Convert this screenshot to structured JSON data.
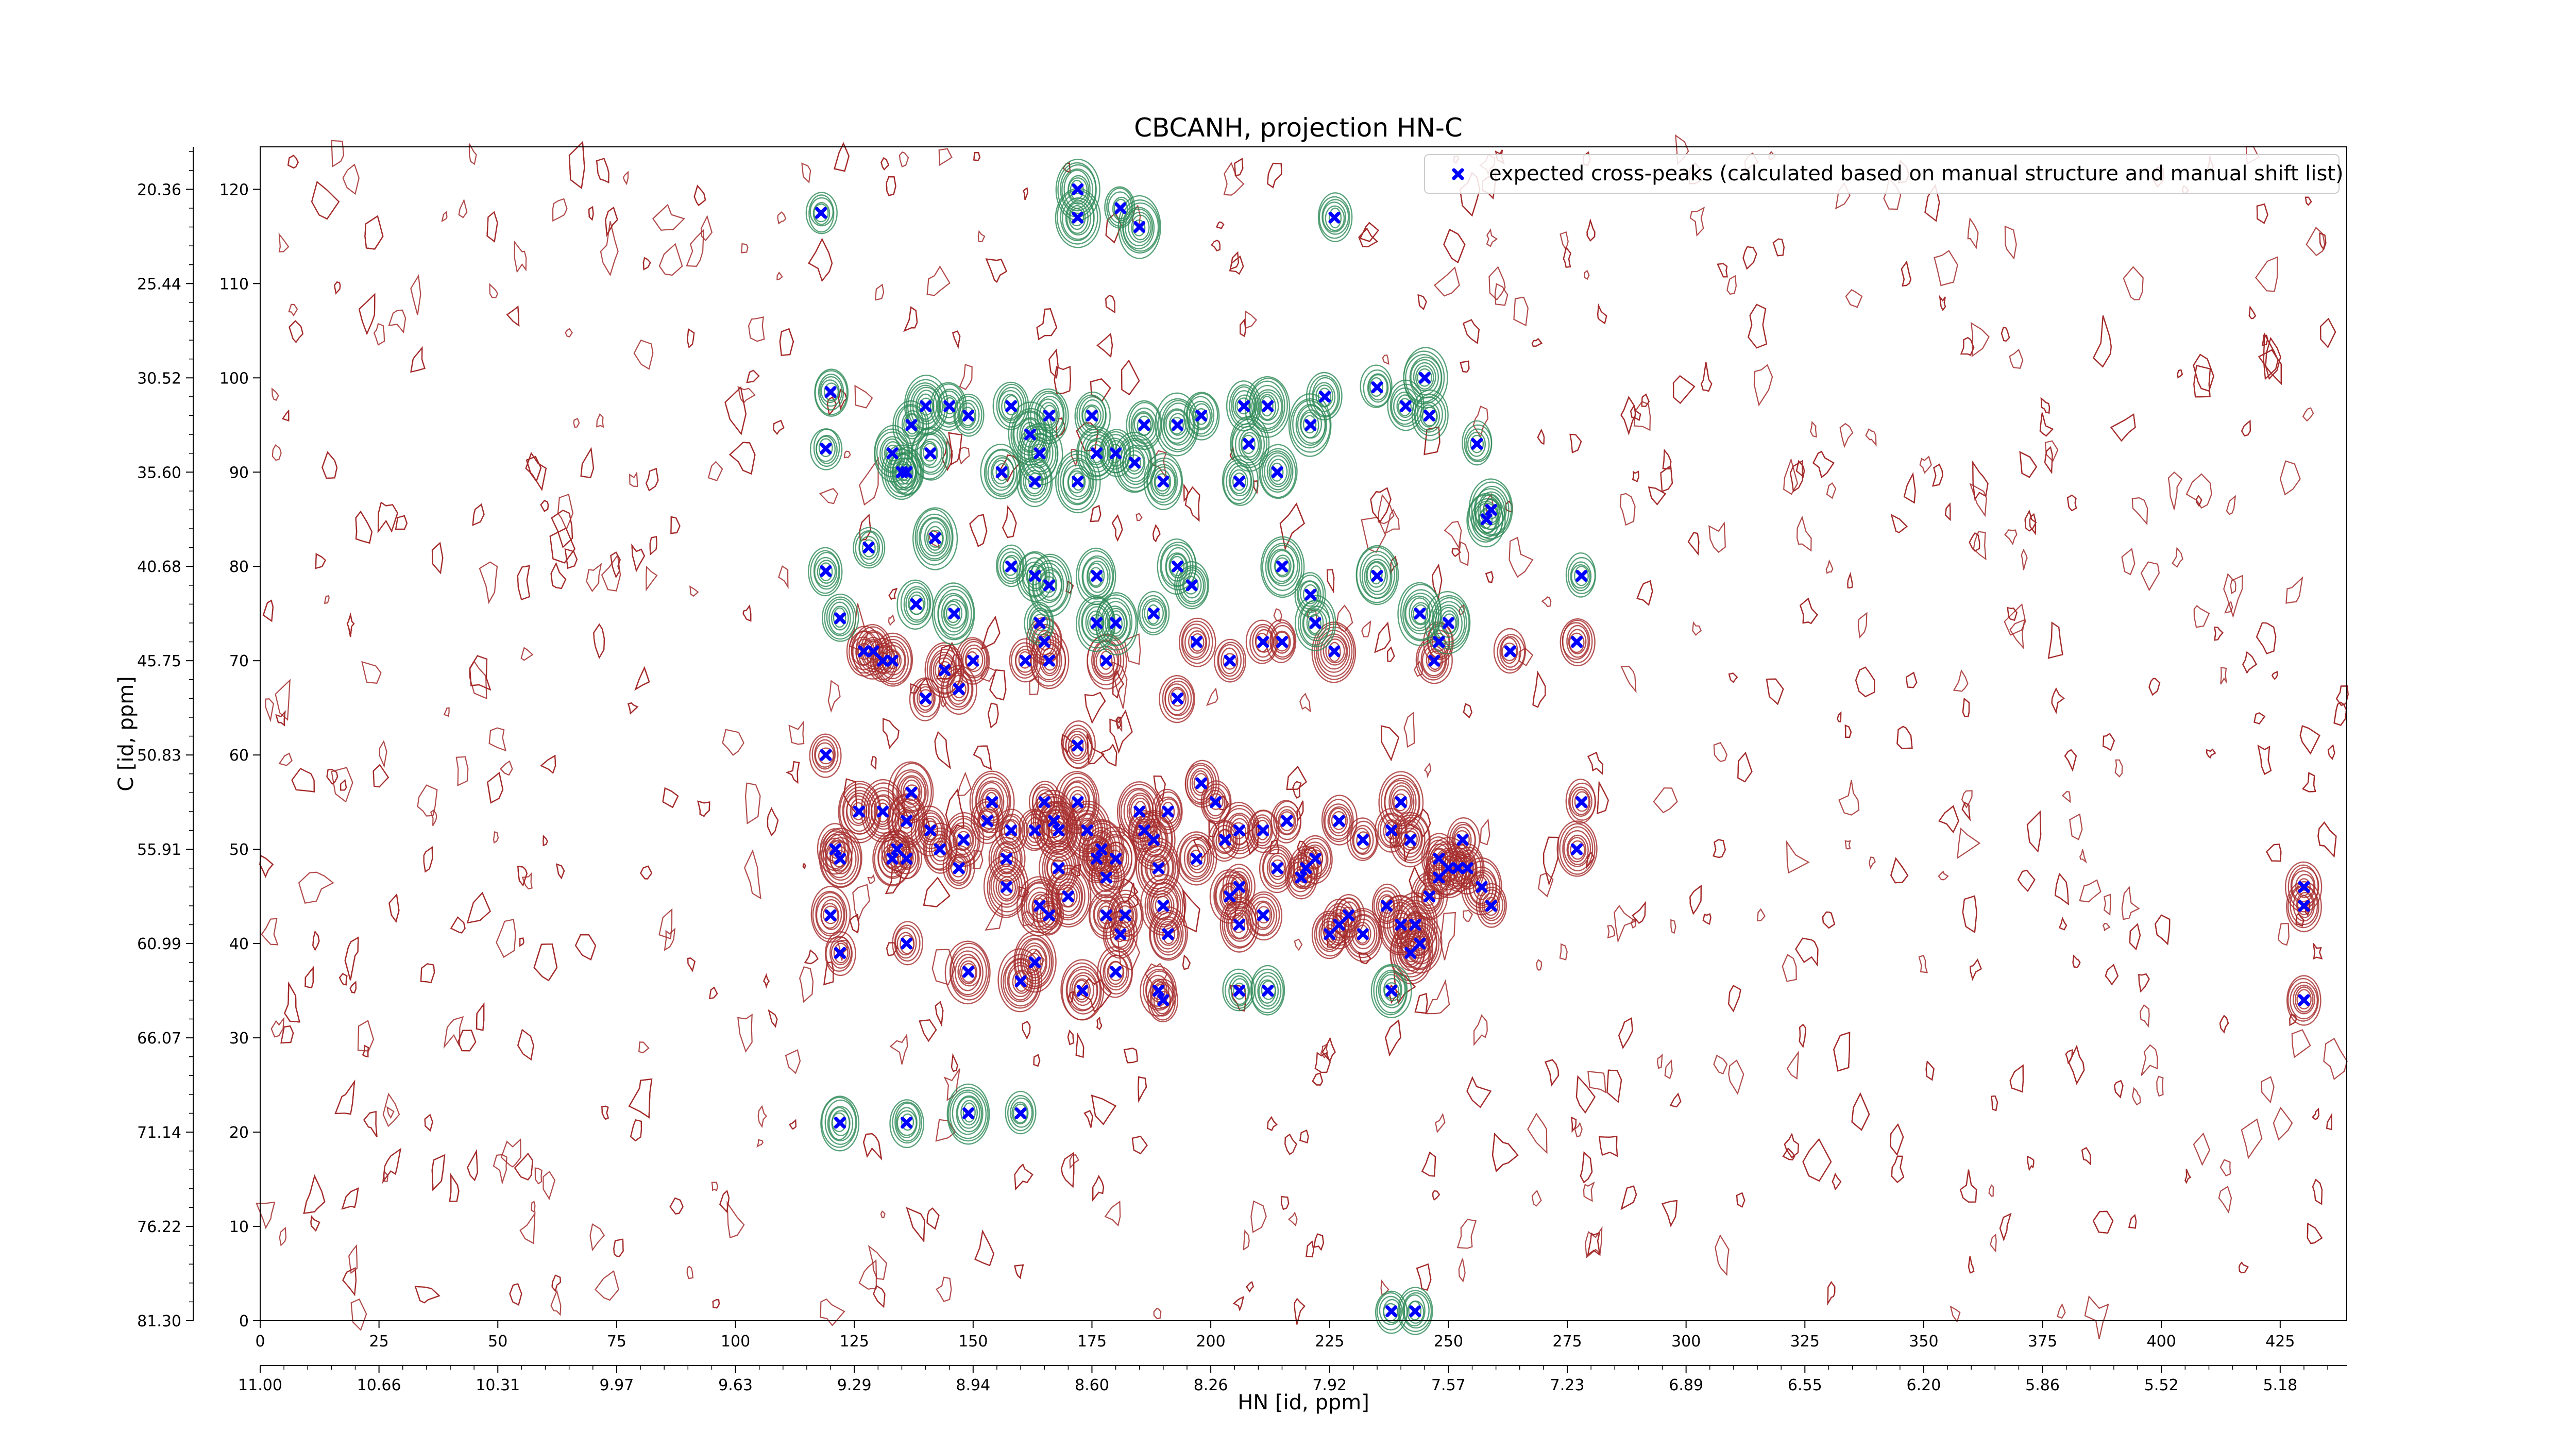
{
  "chart_data": {
    "type": "scatter",
    "title": "CBCANH, projection HN-C",
    "xlabel": "HN [id, ppm]",
    "ylabel": "C [id, ppm]",
    "xlim": [
      0,
      439
    ],
    "ylim": [
      0,
      124.5
    ],
    "x_index_ticks": [
      "0",
      "25",
      "50",
      "75",
      "100",
      "125",
      "150",
      "175",
      "200",
      "225",
      "250",
      "275",
      "300",
      "325",
      "350",
      "375",
      "400",
      "425"
    ],
    "x_ppm_ticks": [
      "11.00",
      "10.66",
      "10.31",
      "9.97",
      "9.63",
      "9.29",
      "8.94",
      "8.60",
      "8.26",
      "7.92",
      "7.57",
      "7.23",
      "6.89",
      "6.55",
      "6.20",
      "5.86",
      "5.52",
      "5.18"
    ],
    "y_index_ticks": [
      "0",
      "10",
      "20",
      "30",
      "40",
      "50",
      "60",
      "70",
      "80",
      "90",
      "100",
      "110",
      "120"
    ],
    "y_ppm_ticks": [
      "81.30",
      "76.22",
      "71.14",
      "66.07",
      "60.99",
      "55.91",
      "50.83",
      "45.75",
      "40.68",
      "35.60",
      "30.52",
      "25.44",
      "20.36"
    ],
    "legend": {
      "position": "top-right",
      "entry": "expected cross-peaks (calculated based on manual structure and manual shift list)"
    },
    "colors": {
      "positive_contour": "#2e8b57",
      "negative_contour": "#a52a2a",
      "marker": "#0000ff"
    },
    "grid": false,
    "series": [
      {
        "name": "expected cross-peaks (calculated based on manual structure and manual shift list)",
        "marker": "x",
        "points": [
          [
            118,
            117.5
          ],
          [
            120,
            98.5
          ],
          [
            119,
            92.5
          ],
          [
            119,
            79.5
          ],
          [
            122,
            74.5
          ],
          [
            127,
            71
          ],
          [
            129,
            71
          ],
          [
            138,
            76
          ],
          [
            146,
            75
          ],
          [
            140,
            66
          ],
          [
            147,
            67
          ],
          [
            128,
            82
          ],
          [
            142,
            83
          ],
          [
            135,
            90
          ],
          [
            137,
            95
          ],
          [
            133,
            92
          ],
          [
            136,
            90
          ],
          [
            145,
            97
          ],
          [
            140,
            97
          ],
          [
            141,
            92
          ],
          [
            149,
            96
          ],
          [
            158,
            97
          ],
          [
            162,
            94
          ],
          [
            164,
            92
          ],
          [
            166,
            96
          ],
          [
            156,
            90
          ],
          [
            163,
            89
          ],
          [
            172,
            89
          ],
          [
            175,
            96
          ],
          [
            176,
            92
          ],
          [
            180,
            92
          ],
          [
            184,
            91
          ],
          [
            186,
            95
          ],
          [
            190,
            89
          ],
          [
            193,
            95
          ],
          [
            198,
            96
          ],
          [
            207,
            97
          ],
          [
            212,
            97
          ],
          [
            208,
            93
          ],
          [
            206,
            89
          ],
          [
            214,
            90
          ],
          [
            221,
            95
          ],
          [
            235,
            99
          ],
          [
            241,
            97
          ],
          [
            246,
            96
          ],
          [
            245,
            100
          ],
          [
            256,
            93
          ],
          [
            259,
            86
          ],
          [
            258,
            85
          ],
          [
            181,
            118
          ],
          [
            185,
            116
          ],
          [
            172,
            120
          ],
          [
            172,
            117
          ],
          [
            226,
            117
          ],
          [
            224,
            98
          ],
          [
            158,
            80
          ],
          [
            163,
            79
          ],
          [
            166,
            78
          ],
          [
            164,
            74
          ],
          [
            176,
            79
          ],
          [
            176,
            74
          ],
          [
            180,
            74
          ],
          [
            188,
            75
          ],
          [
            193,
            80
          ],
          [
            196,
            78
          ],
          [
            197,
            72
          ],
          [
            204,
            70
          ],
          [
            211,
            72
          ],
          [
            215,
            72
          ],
          [
            215,
            80
          ],
          [
            221,
            77
          ],
          [
            222,
            74
          ],
          [
            226,
            71
          ],
          [
            235,
            79
          ],
          [
            244,
            75
          ],
          [
            248,
            72
          ],
          [
            247,
            70
          ],
          [
            250,
            74
          ],
          [
            263,
            71
          ],
          [
            278,
            79
          ],
          [
            277,
            72
          ],
          [
            131,
            70
          ],
          [
            133,
            70
          ],
          [
            144,
            69
          ],
          [
            150,
            70
          ],
          [
            161,
            70
          ],
          [
            166,
            70
          ],
          [
            178,
            70
          ],
          [
            165,
            72
          ],
          [
            193,
            66
          ],
          [
            119,
            60
          ],
          [
            122,
            49
          ],
          [
            121,
            50
          ],
          [
            126,
            54
          ],
          [
            131,
            54
          ],
          [
            133,
            49
          ],
          [
            134,
            50
          ],
          [
            136,
            49
          ],
          [
            136,
            53
          ],
          [
            137,
            56
          ],
          [
            141,
            52
          ],
          [
            143,
            50
          ],
          [
            147,
            48
          ],
          [
            148,
            51
          ],
          [
            153,
            53
          ],
          [
            154,
            55
          ],
          [
            157,
            49
          ],
          [
            158,
            52
          ],
          [
            163,
            52
          ],
          [
            165,
            55
          ],
          [
            167,
            53
          ],
          [
            168,
            52
          ],
          [
            172,
            55
          ],
          [
            174,
            52
          ],
          [
            176,
            49
          ],
          [
            177,
            50
          ],
          [
            178,
            47
          ],
          [
            180,
            49
          ],
          [
            185,
            54
          ],
          [
            186,
            52
          ],
          [
            188,
            51
          ],
          [
            189,
            48
          ],
          [
            191,
            54
          ],
          [
            197,
            49
          ],
          [
            203,
            51
          ],
          [
            198,
            57
          ],
          [
            201,
            55
          ],
          [
            206,
            52
          ],
          [
            211,
            52
          ],
          [
            214,
            48
          ],
          [
            216,
            53
          ],
          [
            219,
            47
          ],
          [
            220,
            48
          ],
          [
            222,
            49
          ],
          [
            227,
            53
          ],
          [
            232,
            51
          ],
          [
            238,
            52
          ],
          [
            240,
            55
          ],
          [
            242,
            51
          ],
          [
            248,
            49
          ],
          [
            253,
            51
          ],
          [
            254,
            48
          ],
          [
            278,
            55
          ],
          [
            277,
            50
          ],
          [
            172,
            61
          ],
          [
            164,
            44
          ],
          [
            166,
            43
          ],
          [
            157,
            46
          ],
          [
            170,
            45
          ],
          [
            168,
            48
          ],
          [
            178,
            43
          ],
          [
            181,
            41
          ],
          [
            182,
            43
          ],
          [
            190,
            44
          ],
          [
            191,
            41
          ],
          [
            204,
            45
          ],
          [
            206,
            46
          ],
          [
            206,
            42
          ],
          [
            211,
            43
          ],
          [
            229,
            43
          ],
          [
            232,
            41
          ],
          [
            237,
            44
          ],
          [
            243,
            42
          ],
          [
            244,
            40
          ],
          [
            246,
            45
          ],
          [
            248,
            47
          ],
          [
            250,
            48
          ],
          [
            252,
            48
          ],
          [
            257,
            46
          ],
          [
            259,
            44
          ],
          [
            120,
            43
          ],
          [
            122,
            39
          ],
          [
            136,
            40
          ],
          [
            149,
            37
          ],
          [
            160,
            36
          ],
          [
            163,
            38
          ],
          [
            173,
            35
          ],
          [
            180,
            37
          ],
          [
            189,
            35
          ],
          [
            190,
            34
          ],
          [
            206,
            35
          ],
          [
            212,
            35
          ],
          [
            227,
            42
          ],
          [
            225,
            41
          ],
          [
            240,
            42
          ],
          [
            242,
            39
          ],
          [
            238,
            35
          ],
          [
            122,
            21
          ],
          [
            136,
            21
          ],
          [
            149,
            22
          ],
          [
            160,
            22
          ],
          [
            238,
            1
          ],
          [
            243,
            1
          ],
          [
            430,
            46
          ],
          [
            430,
            44
          ],
          [
            430,
            34
          ]
        ]
      }
    ]
  }
}
